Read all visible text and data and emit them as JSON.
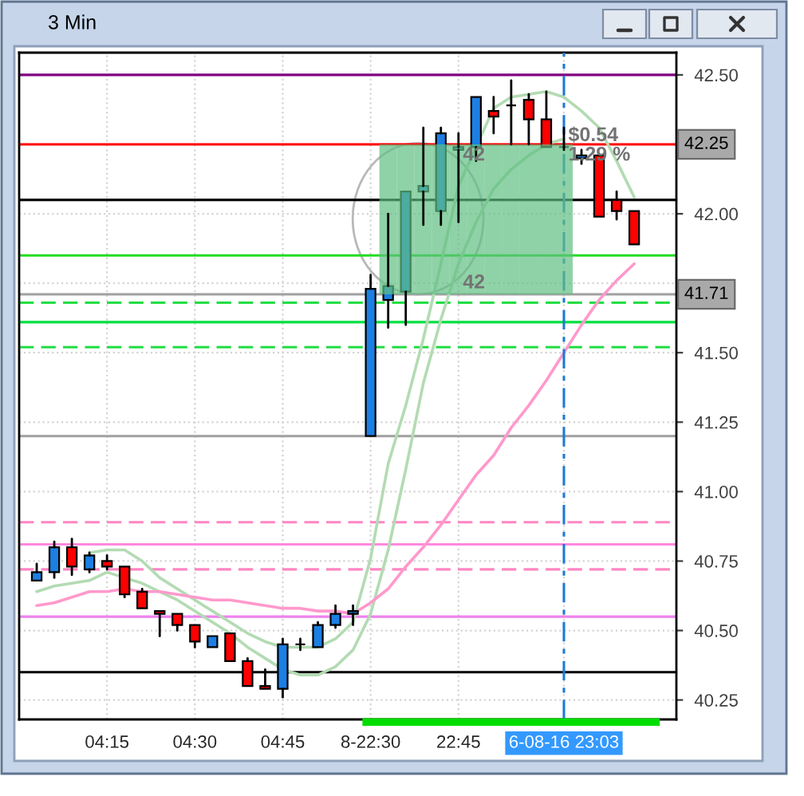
{
  "chart_data": {
    "type": "candlestick",
    "title": "3 Min",
    "categories": [
      null,
      null,
      null,
      null,
      "04:15",
      null,
      null,
      null,
      null,
      "04:30",
      null,
      null,
      null,
      null,
      "04:45",
      null,
      null,
      null,
      null,
      "8-22:30",
      null,
      null,
      null,
      null,
      "22:45",
      null,
      null,
      null,
      null,
      null,
      "6-08-16 23:03",
      null,
      null,
      null,
      null
    ],
    "ohlc": [
      [
        40.68,
        40.74,
        40.68,
        40.71
      ],
      [
        40.71,
        40.82,
        40.69,
        40.8
      ],
      [
        40.8,
        40.83,
        40.7,
        40.73
      ],
      [
        40.72,
        40.78,
        40.71,
        40.77
      ],
      [
        40.75,
        40.77,
        40.72,
        40.73
      ],
      [
        40.73,
        40.73,
        40.62,
        40.63
      ],
      [
        40.64,
        40.65,
        40.58,
        40.58
      ],
      [
        40.57,
        40.57,
        40.48,
        40.56
      ],
      [
        40.56,
        40.56,
        40.5,
        40.52
      ],
      [
        40.52,
        40.52,
        40.44,
        40.46
      ],
      [
        40.44,
        40.48,
        40.44,
        40.48
      ],
      [
        40.49,
        40.49,
        40.39,
        40.39
      ],
      [
        40.39,
        40.4,
        40.3,
        40.3
      ],
      [
        40.3,
        40.36,
        40.29,
        40.29
      ],
      [
        40.29,
        40.47,
        40.26,
        40.45
      ],
      [
        40.45,
        40.47,
        40.43,
        40.45
      ],
      [
        40.44,
        40.53,
        40.44,
        40.52
      ],
      [
        40.52,
        40.59,
        40.51,
        40.56
      ],
      [
        40.56,
        40.59,
        40.52,
        40.57
      ],
      [
        41.2,
        41.78,
        41.2,
        41.73
      ],
      [
        41.69,
        42.0,
        41.59,
        41.74
      ],
      [
        41.72,
        42.08,
        41.6,
        42.08
      ],
      [
        42.08,
        42.31,
        41.96,
        42.1
      ],
      [
        42.01,
        42.31,
        41.96,
        42.29
      ],
      [
        42.23,
        42.29,
        41.97,
        42.24
      ],
      [
        42.24,
        42.42,
        42.19,
        42.42
      ],
      [
        42.37,
        42.42,
        42.29,
        42.35
      ],
      [
        42.39,
        42.48,
        42.25,
        42.39
      ],
      [
        42.41,
        42.43,
        42.25,
        42.34
      ],
      [
        42.34,
        42.44,
        42.24,
        42.24
      ],
      [
        42.24,
        42.31,
        42.23,
        42.24
      ],
      [
        42.2,
        42.23,
        42.18,
        42.21
      ],
      [
        42.21,
        42.21,
        41.99,
        41.99
      ],
      [
        42.05,
        42.08,
        41.98,
        42.01
      ],
      [
        42.01,
        42.01,
        41.89,
        41.89
      ]
    ],
    "colors": [
      "#1b7fe3",
      "#1b7fe3",
      "#ff0000",
      "#1b7fe3",
      "#ff0000",
      "#ff0000",
      "#ff0000",
      "#ff0000",
      "#ff0000",
      "#ff0000",
      "#1b7fe3",
      "#ff0000",
      "#ff0000",
      "#ff0000",
      "#1b7fe3",
      "#000000",
      "#1b7fe3",
      "#1b7fe3",
      "#1b7fe3",
      "#1b7fe3",
      "#1b7fe3",
      "#1b7fe3",
      "#1b7fe3",
      "#1b7fe3",
      "#1b7fe3",
      "#1b7fe3",
      "#ff0000",
      "#000000",
      "#ff0000",
      "#ff0000",
      "#000000",
      "#1b7fe3",
      "#ff0000",
      "#ff0000",
      "#ff0000"
    ],
    "series": [
      {
        "type": "bar",
        "color": "#8fd2a7",
        "values": [
          null,
          null,
          null,
          null,
          null,
          null,
          null,
          null,
          null,
          null,
          null,
          null,
          null,
          null,
          null,
          null,
          null,
          null,
          null,
          null,
          0.54,
          0.54,
          0.54,
          0.54,
          0.54,
          0.54,
          0.54,
          0.54,
          0.54,
          0.54,
          0.54,
          null,
          null,
          null,
          null
        ],
        "base": [
          null,
          null,
          null,
          null,
          null,
          null,
          null,
          null,
          null,
          null,
          null,
          null,
          null,
          null,
          null,
          null,
          null,
          null,
          null,
          null,
          41.71,
          41.71,
          41.71,
          41.71,
          41.71,
          41.71,
          41.71,
          41.71,
          41.71,
          41.71,
          41.71,
          null,
          null,
          null,
          null
        ]
      },
      {
        "type": "line",
        "color": "#b3dbb3",
        "values": [
          null,
          null,
          null,
          40.78,
          40.79,
          40.79,
          40.75,
          40.69,
          40.65,
          40.61,
          40.57,
          40.53,
          40.49,
          40.46,
          40.44,
          40.44,
          40.44,
          40.47,
          40.53,
          40.76,
          41.1,
          41.31,
          41.55,
          41.82,
          42.1,
          null,
          42.38,
          42.42,
          42.43,
          42.44,
          42.42,
          42.37,
          42.31,
          42.19,
          42.06
        ]
      },
      {
        "type": "line",
        "color": "#b3dbb3",
        "values": [
          40.64,
          40.66,
          40.67,
          40.68,
          40.71,
          40.69,
          40.67,
          40.64,
          40.61,
          40.57,
          40.53,
          40.49,
          40.44,
          40.4,
          40.36,
          40.34,
          40.34,
          40.37,
          40.43,
          40.56,
          40.79,
          41.08,
          41.39,
          41.62,
          41.82,
          41.97,
          42.09,
          42.16,
          42.21,
          42.25,
          42.27,
          null,
          null,
          null,
          null
        ]
      },
      {
        "type": "line",
        "color": "#ff99cc",
        "values": [
          40.59,
          40.6,
          40.62,
          40.64,
          40.64,
          40.65,
          40.64,
          40.64,
          40.63,
          40.62,
          40.61,
          40.61,
          40.6,
          40.59,
          40.58,
          40.58,
          40.57,
          40.57,
          40.56,
          40.6,
          40.65,
          40.73,
          40.8,
          40.88,
          40.97,
          41.06,
          41.13,
          41.23,
          41.31,
          41.4,
          41.5,
          41.6,
          41.69,
          41.76,
          41.82
        ]
      }
    ],
    "ylim": [
      40.18,
      42.58
    ],
    "yticks": [
      40.25,
      {
        "value": 40.5,
        "label": "40.50"
      },
      40.75,
      {
        "value": 41.0,
        "label": "41.00"
      },
      41.25,
      {
        "value": 41.5,
        "label": "41.50"
      },
      {
        "value": 41.75,
        "label": null
      },
      {
        "value": 42.0,
        "label": "42.00"
      },
      {
        "value": 42.25,
        "label": null
      },
      {
        "value": 42.5,
        "label": "42.50"
      }
    ],
    "grid": true,
    "ref_lines": [
      {
        "axis": "y",
        "value": 42.5,
        "color": "#800080"
      },
      {
        "axis": "y",
        "value": 42.25,
        "color": "#ff0000",
        "label": "42.25"
      },
      {
        "axis": "y",
        "value": 42.05,
        "color": "#000000"
      },
      {
        "axis": "y",
        "value": 41.85,
        "color": "#22dd22"
      },
      {
        "axis": "y",
        "value": 41.71,
        "color": "#a0a0a0",
        "label": "41.71"
      },
      {
        "axis": "y",
        "value": 41.68,
        "color": "#22dd44",
        "line_style": "dashed"
      },
      {
        "axis": "y",
        "value": 41.61,
        "color": "#00e040"
      },
      {
        "axis": "y",
        "value": 41.52,
        "color": "#22dd44",
        "line_style": "dashed"
      },
      {
        "axis": "y",
        "value": 41.2,
        "color": "#a0a0a0"
      },
      {
        "axis": "y",
        "value": 40.89,
        "color": "#ff85c2",
        "line_style": "dashed"
      },
      {
        "axis": "y",
        "value": 40.81,
        "color": "#ff88e0"
      },
      {
        "axis": "y",
        "value": 40.72,
        "color": "#ff85c2",
        "line_style": "dashed"
      },
      {
        "axis": "y",
        "value": 40.55,
        "color": "#ee82ee"
      },
      {
        "axis": "y",
        "value": 40.35,
        "color": "#000000"
      },
      {
        "axis": "x",
        "value": "6-08-16 23:03",
        "color": "#1e78d7",
        "line_style": "dashed"
      }
    ],
    "annotations": [
      {
        "text": "$0.54",
        "x": "6-08-16 23:03",
        "y": 42.28
      },
      {
        "text": "1.29 %",
        "x": "6-08-16 23:03",
        "y": 42.21
      },
      {
        "text": "42",
        "x": "22:45",
        "y": 42.21
      },
      {
        "text": "42",
        "x": "22:45",
        "y": 41.75
      }
    ]
  }
}
